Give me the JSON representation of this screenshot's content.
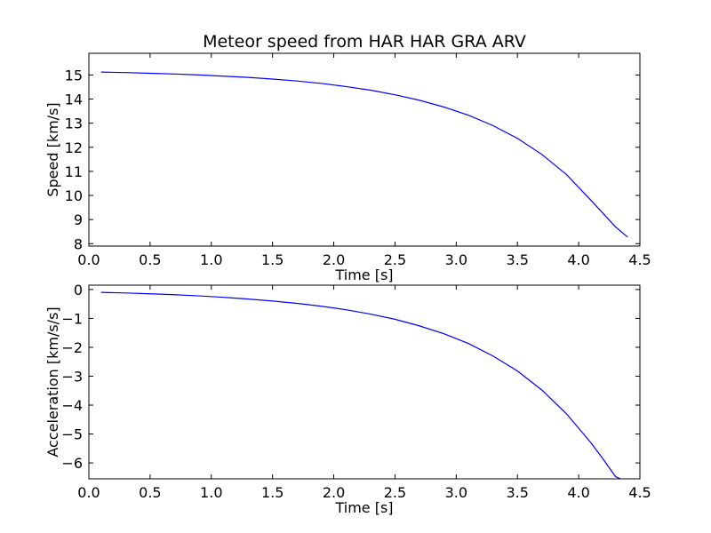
{
  "figure_title": "Meteor speed from  HAR HAR GRA ARV",
  "colors": {
    "line": "#0000ff",
    "axes": "#000000",
    "background": "#ffffff"
  },
  "chart_data": [
    {
      "type": "line",
      "title": "Meteor speed from  HAR HAR GRA ARV",
      "xlabel": "Time [s]",
      "ylabel": "Speed [km/s]",
      "xlim": [
        0.0,
        4.5
      ],
      "ylim": [
        7.9,
        15.9
      ],
      "xticks": [
        "0.0",
        "0.5",
        "1.0",
        "1.5",
        "2.0",
        "2.5",
        "3.0",
        "3.5",
        "4.0",
        "4.5"
      ],
      "yticks": [
        "8",
        "9",
        "10",
        "11",
        "12",
        "13",
        "14",
        "15"
      ],
      "grid": false,
      "series": [
        {
          "x": [
            0.1,
            0.3,
            0.5,
            0.7,
            0.9,
            1.1,
            1.3,
            1.5,
            1.7,
            1.9,
            2.1,
            2.3,
            2.5,
            2.7,
            2.9,
            3.1,
            3.3,
            3.5,
            3.7,
            3.9,
            4.1,
            4.3,
            4.4
          ],
          "y": [
            15.12,
            15.1,
            15.07,
            15.04,
            15.0,
            14.95,
            14.9,
            14.83,
            14.75,
            14.65,
            14.52,
            14.37,
            14.18,
            13.95,
            13.67,
            13.33,
            12.9,
            12.37,
            11.7,
            10.87,
            9.8,
            8.7,
            8.27
          ]
        }
      ]
    },
    {
      "type": "line",
      "xlabel": "Time [s]",
      "ylabel": "Acceleration [km/s/s]",
      "xlim": [
        0.0,
        4.5
      ],
      "ylim": [
        -6.55,
        0.15
      ],
      "xticks": [
        "0.0",
        "0.5",
        "1.0",
        "1.5",
        "2.0",
        "2.5",
        "3.0",
        "3.5",
        "4.0",
        "4.5"
      ],
      "yticks": [
        "0",
        "−1",
        "−2",
        "−3",
        "−4",
        "−5",
        "−6"
      ],
      "grid": false,
      "series": [
        {
          "x": [
            0.1,
            0.3,
            0.5,
            0.7,
            0.9,
            1.1,
            1.3,
            1.5,
            1.7,
            1.9,
            2.1,
            2.3,
            2.5,
            2.7,
            2.9,
            3.1,
            3.3,
            3.5,
            3.7,
            3.9,
            4.1,
            4.2,
            4.3,
            4.34
          ],
          "y": [
            -0.1,
            -0.12,
            -0.15,
            -0.18,
            -0.22,
            -0.27,
            -0.33,
            -0.4,
            -0.48,
            -0.58,
            -0.7,
            -0.85,
            -1.03,
            -1.26,
            -1.53,
            -1.87,
            -2.3,
            -2.82,
            -3.48,
            -4.3,
            -5.3,
            -5.87,
            -6.47,
            -6.55
          ]
        }
      ]
    }
  ]
}
